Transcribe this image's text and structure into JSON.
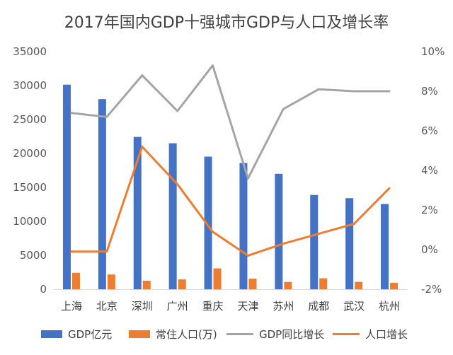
{
  "chart_data": {
    "type": "bar+line",
    "title": "2017年国内GDP十强城市GDP与人口及增长率",
    "categories": [
      "上海",
      "北京",
      "深圳",
      "广州",
      "重庆",
      "天津",
      "苏州",
      "成都",
      "武汉",
      "杭州"
    ],
    "left_axis": {
      "min": 0,
      "max": 35000,
      "ticks": [
        "0",
        "5000",
        "10000",
        "15000",
        "20000",
        "25000",
        "30000",
        "35000"
      ]
    },
    "right_axis": {
      "min": -2,
      "max": 10,
      "ticks": [
        "-2%",
        "0%",
        "2%",
        "4%",
        "6%",
        "8%",
        "10%"
      ]
    },
    "series": [
      {
        "name": "GDP亿元",
        "type": "bar",
        "axis": "left",
        "color": "#4472C4",
        "values": [
          30133,
          28000,
          22438,
          21503,
          19530,
          18595,
          17000,
          13889,
          13410,
          12556
        ]
      },
      {
        "name": "常住人口(万)",
        "type": "bar",
        "axis": "left",
        "color": "#ED7D31",
        "values": [
          2418,
          2171,
          1253,
          1450,
          3075,
          1557,
          1068,
          1605,
          1089,
          947
        ]
      },
      {
        "name": "GDP同比增长",
        "type": "line",
        "axis": "right",
        "color": "#A5A5A5",
        "values": [
          6.9,
          6.7,
          8.8,
          7.0,
          9.3,
          3.6,
          7.1,
          8.1,
          8.0,
          8.0
        ]
      },
      {
        "name": "人口增长",
        "type": "line",
        "axis": "right",
        "color": "#ED7D31",
        "values": [
          -0.1,
          -0.1,
          5.2,
          3.3,
          0.9,
          -0.3,
          0.3,
          0.8,
          1.3,
          3.1
        ]
      }
    ],
    "legend_position": "bottom",
    "grid": false
  }
}
